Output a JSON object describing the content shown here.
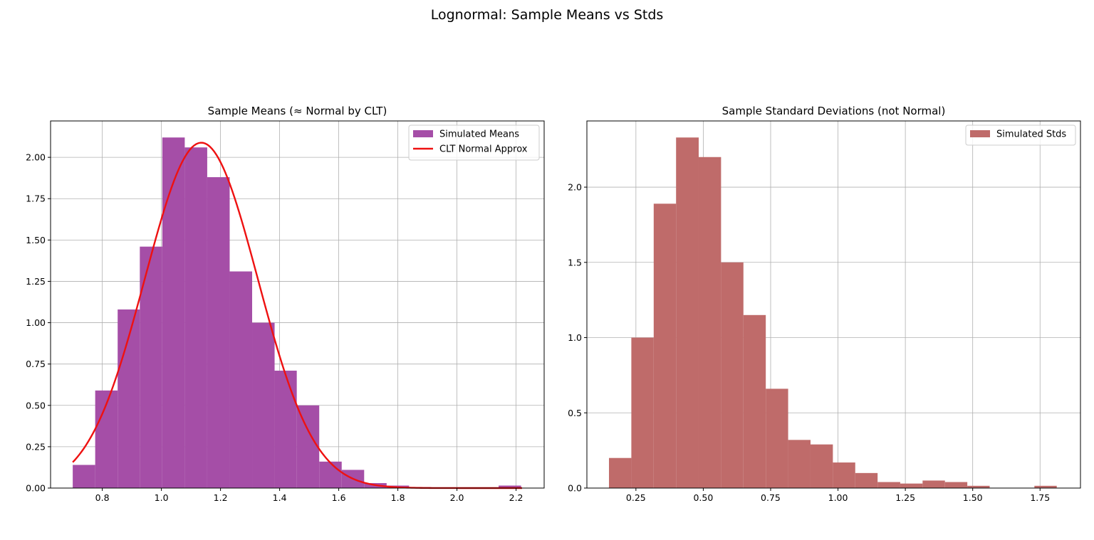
{
  "suptitle": "Lognormal: Sample Means vs Stds",
  "chart_data": [
    {
      "type": "bar",
      "title": "Sample Means (≈ Normal by CLT)",
      "xlabel": "",
      "ylabel": "",
      "xlim": [
        0.625,
        2.295
      ],
      "ylim": [
        0,
        2.22
      ],
      "xticks": [
        "0.8",
        "1.0",
        "1.2",
        "1.4",
        "1.6",
        "1.8",
        "2.0",
        "2.2"
      ],
      "xtick_values": [
        0.8,
        1.0,
        1.2,
        1.4,
        1.6,
        1.8,
        2.0,
        2.2
      ],
      "yticks": [
        "0.00",
        "0.25",
        "0.50",
        "0.75",
        "1.00",
        "1.25",
        "1.50",
        "1.75",
        "2.00"
      ],
      "ytick_values": [
        0,
        0.25,
        0.5,
        0.75,
        1.0,
        1.25,
        1.5,
        1.75,
        2.0
      ],
      "grid": true,
      "legend_position": "top-right",
      "bins": [
        0.7,
        0.776,
        0.852,
        0.927,
        1.003,
        1.079,
        1.155,
        1.231,
        1.307,
        1.383,
        1.458,
        1.534,
        1.61,
        1.686,
        1.762,
        1.838,
        1.913,
        1.989,
        2.065,
        2.141,
        2.217
      ],
      "series": [
        {
          "name": "Simulated Means",
          "kind": "histogram",
          "color": "#a54ea7",
          "values": [
            0.14,
            0.59,
            1.08,
            1.46,
            2.12,
            2.06,
            1.88,
            1.31,
            1.0,
            0.71,
            0.5,
            0.16,
            0.11,
            0.03,
            0.015,
            0.005,
            0.0,
            0.0,
            0.0,
            0.015
          ]
        },
        {
          "name": "CLT Normal Approx",
          "kind": "line",
          "color": "#ee1111",
          "mean": 1.135,
          "std": 0.191,
          "x_range": [
            0.7,
            2.22
          ]
        }
      ]
    },
    {
      "type": "bar",
      "title": "Sample Standard Deviations (not Normal)",
      "xlabel": "",
      "ylabel": "",
      "xlim": [
        0.068,
        1.9
      ],
      "ylim": [
        0,
        2.44
      ],
      "xticks": [
        "0.25",
        "0.50",
        "0.75",
        "1.00",
        "1.25",
        "1.50",
        "1.75"
      ],
      "xtick_values": [
        0.25,
        0.5,
        0.75,
        1.0,
        1.25,
        1.5,
        1.75
      ],
      "yticks": [
        "0.0",
        "0.5",
        "1.0",
        "1.5",
        "2.0"
      ],
      "ytick_values": [
        0,
        0.5,
        1.0,
        1.5,
        2.0
      ],
      "grid": true,
      "legend_position": "top-right",
      "bins": [
        0.15,
        0.233,
        0.316,
        0.399,
        0.483,
        0.566,
        0.649,
        0.732,
        0.815,
        0.898,
        0.981,
        1.064,
        1.147,
        1.231,
        1.314,
        1.397,
        1.48,
        1.563,
        1.646,
        1.729,
        1.812
      ],
      "series": [
        {
          "name": "Simulated Stds",
          "kind": "histogram",
          "color": "#bf6b6a",
          "values": [
            0.2,
            1.0,
            1.89,
            2.33,
            2.2,
            1.5,
            1.15,
            0.66,
            0.32,
            0.29,
            0.17,
            0.1,
            0.04,
            0.03,
            0.05,
            0.04,
            0.015,
            0.0,
            0.0,
            0.015
          ]
        }
      ]
    }
  ]
}
